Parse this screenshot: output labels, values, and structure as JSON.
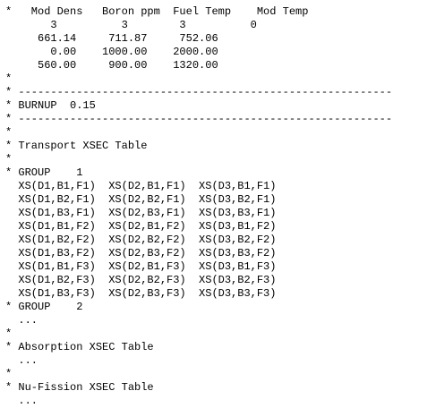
{
  "document": {
    "lines": [
      "*   Mod Dens   Boron ppm  Fuel Temp    Mod Temp",
      "       3          3        3          0",
      "     661.14     711.87     752.06",
      "       0.00    1000.00    2000.00",
      "     560.00     900.00    1320.00",
      "*",
      "* ----------------------------------------------------------",
      "* BURNUP  0.15",
      "* ----------------------------------------------------------",
      "*",
      "* Transport XSEC Table",
      "*",
      "* GROUP    1",
      "  XS(D1,B1,F1)  XS(D2,B1,F1)  XS(D3,B1,F1)",
      "  XS(D1,B2,F1)  XS(D2,B2,F1)  XS(D3,B2,F1)",
      "  XS(D1,B3,F1)  XS(D2,B3,F1)  XS(D3,B3,F1)",
      "  XS(D1,B1,F2)  XS(D2,B1,F2)  XS(D3,B1,F2)",
      "  XS(D1,B2,F2)  XS(D2,B2,F2)  XS(D3,B2,F2)",
      "  XS(D1,B3,F2)  XS(D2,B3,F2)  XS(D3,B3,F2)",
      "  XS(D1,B1,F3)  XS(D2,B1,F3)  XS(D3,B1,F3)",
      "  XS(D1,B2,F3)  XS(D2,B2,F3)  XS(D3,B2,F3)",
      "  XS(D1,B3,F3)  XS(D2,B3,F3)  XS(D3,B3,F3)",
      "* GROUP    2",
      "  ...",
      "*",
      "* Absorption XSEC Table",
      "  ...",
      "*",
      "* Nu-Fission XSEC Table",
      "  ..."
    ]
  }
}
